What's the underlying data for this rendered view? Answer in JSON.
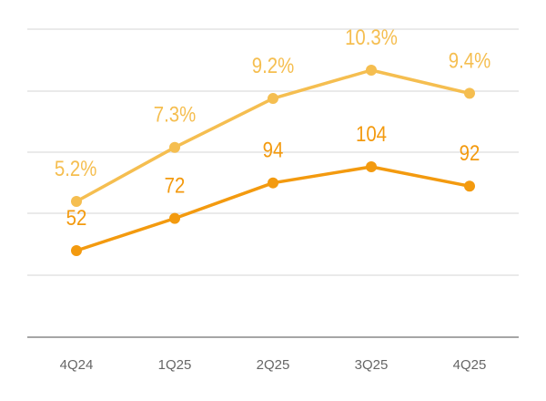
{
  "chart_data": {
    "type": "line",
    "title": "",
    "xlabel": "",
    "ylabel": "",
    "categories": [
      "4Q24",
      "1Q25",
      "2Q25",
      "3Q25",
      "4Q25"
    ],
    "grid": true,
    "legend": "none",
    "series": [
      {
        "values": [
          5.2,
          7.3,
          9.2,
          10.3,
          9.4
        ],
        "labels": [
          "5.2%",
          "7.3%",
          "9.2%",
          "10.3%",
          "9.4%"
        ],
        "color": "#F5BE50"
      },
      {
        "values": [
          52,
          72,
          94,
          104,
          92
        ],
        "labels": [
          "52",
          "72",
          "94",
          "104",
          "92"
        ],
        "color": "#F39A0F"
      }
    ]
  }
}
